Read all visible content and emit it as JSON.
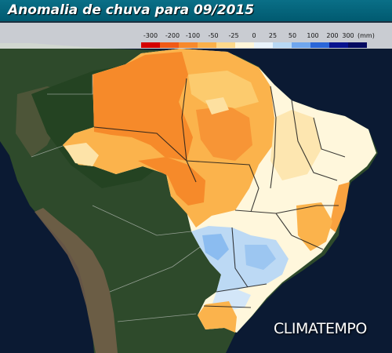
{
  "header": {
    "title": "Anomalia de chuva para 09/2015"
  },
  "legend": {
    "tick_labels": [
      "-300",
      "-200",
      "-100",
      "-50",
      "-25",
      "0",
      "25",
      "50",
      "100",
      "200",
      "300"
    ],
    "unit": "(mm)",
    "colors": [
      "#d40000",
      "#f05a16",
      "#f7892c",
      "#fab04a",
      "#fdd98b",
      "#fff6d9",
      "#e9f3fb",
      "#b8d8f4",
      "#6fa6ee",
      "#2a66d8",
      "#07128e",
      "#050a60"
    ]
  },
  "brand": {
    "logo_text": "CLIMATEMPO"
  },
  "palette": {
    "ocean": "#0b1a33",
    "land": "#2d4a2a",
    "mountains": "#6f5a44",
    "border": "#000000",
    "white_band": "#ffffff"
  }
}
